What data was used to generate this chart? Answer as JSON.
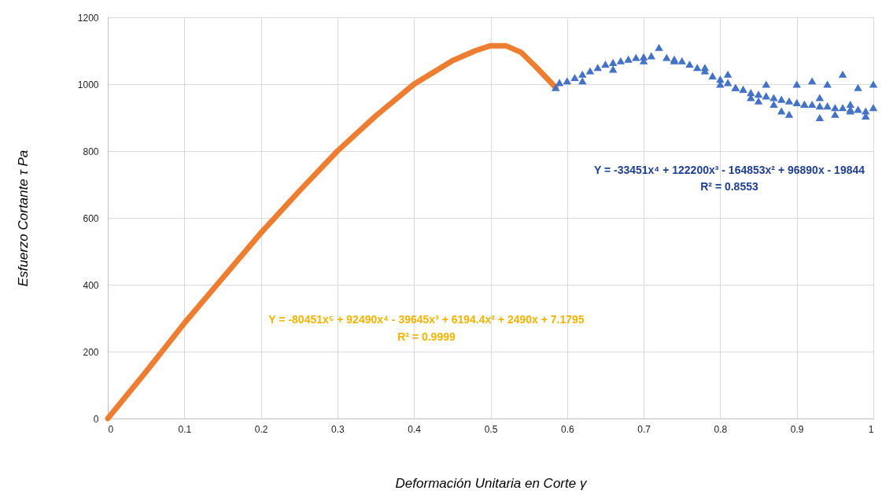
{
  "chart_data": {
    "type": "scatter",
    "xlabel": "Deformación Unitaria en Corte γ",
    "ylabel": "Esfuerzo Cortante τ Pa",
    "xlim": [
      0,
      1
    ],
    "xticks": [
      0,
      0.1,
      0.2,
      0.3,
      0.4,
      0.5,
      0.6,
      0.7,
      0.8,
      0.9,
      1
    ],
    "ylim": [
      0,
      1200
    ],
    "yticks": [
      0,
      200,
      400,
      600,
      800,
      1000,
      1200
    ],
    "grid": true,
    "annotations": [
      "Y = -33451x⁴ + 122200x³ - 164853x² + 96890x - 19844",
      "R² = 0.8553",
      "Y = -80451x⁵ + 92490x⁴ - 39645x³ + 6194.4x² + 2490x + 7.1795",
      "R² = 0.9999"
    ],
    "series": [
      {
        "type": "line",
        "marker": "none",
        "color": "#ed7d31",
        "x": [
          0,
          0.05,
          0.1,
          0.15,
          0.2,
          0.25,
          0.3,
          0.35,
          0.4,
          0.45,
          0.48,
          0.5,
          0.52,
          0.54,
          0.56,
          0.585
        ],
        "values": [
          0,
          140,
          285,
          420,
          555,
          680,
          800,
          905,
          1000,
          1070,
          1100,
          1115,
          1115,
          1095,
          1050,
          990
        ]
      },
      {
        "marker": "triangle",
        "color": "#4472c4",
        "x": [
          0.585,
          0.59,
          0.6,
          0.61,
          0.62,
          0.63,
          0.64,
          0.65,
          0.66,
          0.67,
          0.68,
          0.69,
          0.7,
          0.71,
          0.72,
          0.73,
          0.74,
          0.75,
          0.76,
          0.77,
          0.78,
          0.79,
          0.8,
          0.81,
          0.82,
          0.83,
          0.84,
          0.85,
          0.86,
          0.87,
          0.88,
          0.89,
          0.9,
          0.91,
          0.92,
          0.93,
          0.94,
          0.95,
          0.96,
          0.97,
          0.98,
          0.99,
          1.0,
          0.62,
          0.66,
          0.7,
          0.74,
          0.78,
          0.8,
          0.82,
          0.84,
          0.86,
          0.87,
          0.88,
          0.9,
          0.91,
          0.92,
          0.93,
          0.94,
          0.95,
          0.96,
          0.97,
          0.98,
          0.99,
          1.0,
          0.85,
          0.89,
          0.93,
          0.97,
          0.81
        ],
        "values": [
          990,
          1005,
          1010,
          1020,
          1030,
          1040,
          1050,
          1060,
          1065,
          1070,
          1075,
          1080,
          1082,
          1085,
          1110,
          1080,
          1075,
          1070,
          1060,
          1050,
          1040,
          1025,
          1015,
          1005,
          990,
          985,
          975,
          970,
          965,
          960,
          955,
          950,
          945,
          940,
          940,
          935,
          935,
          930,
          930,
          925,
          925,
          920,
          930,
          1010,
          1045,
          1070,
          1070,
          1050,
          1000,
          990,
          960,
          1000,
          940,
          920,
          1000,
          940,
          1010,
          900,
          1000,
          910,
          1030,
          920,
          990,
          905,
          1000,
          950,
          910,
          960,
          940,
          1030
        ]
      }
    ]
  }
}
